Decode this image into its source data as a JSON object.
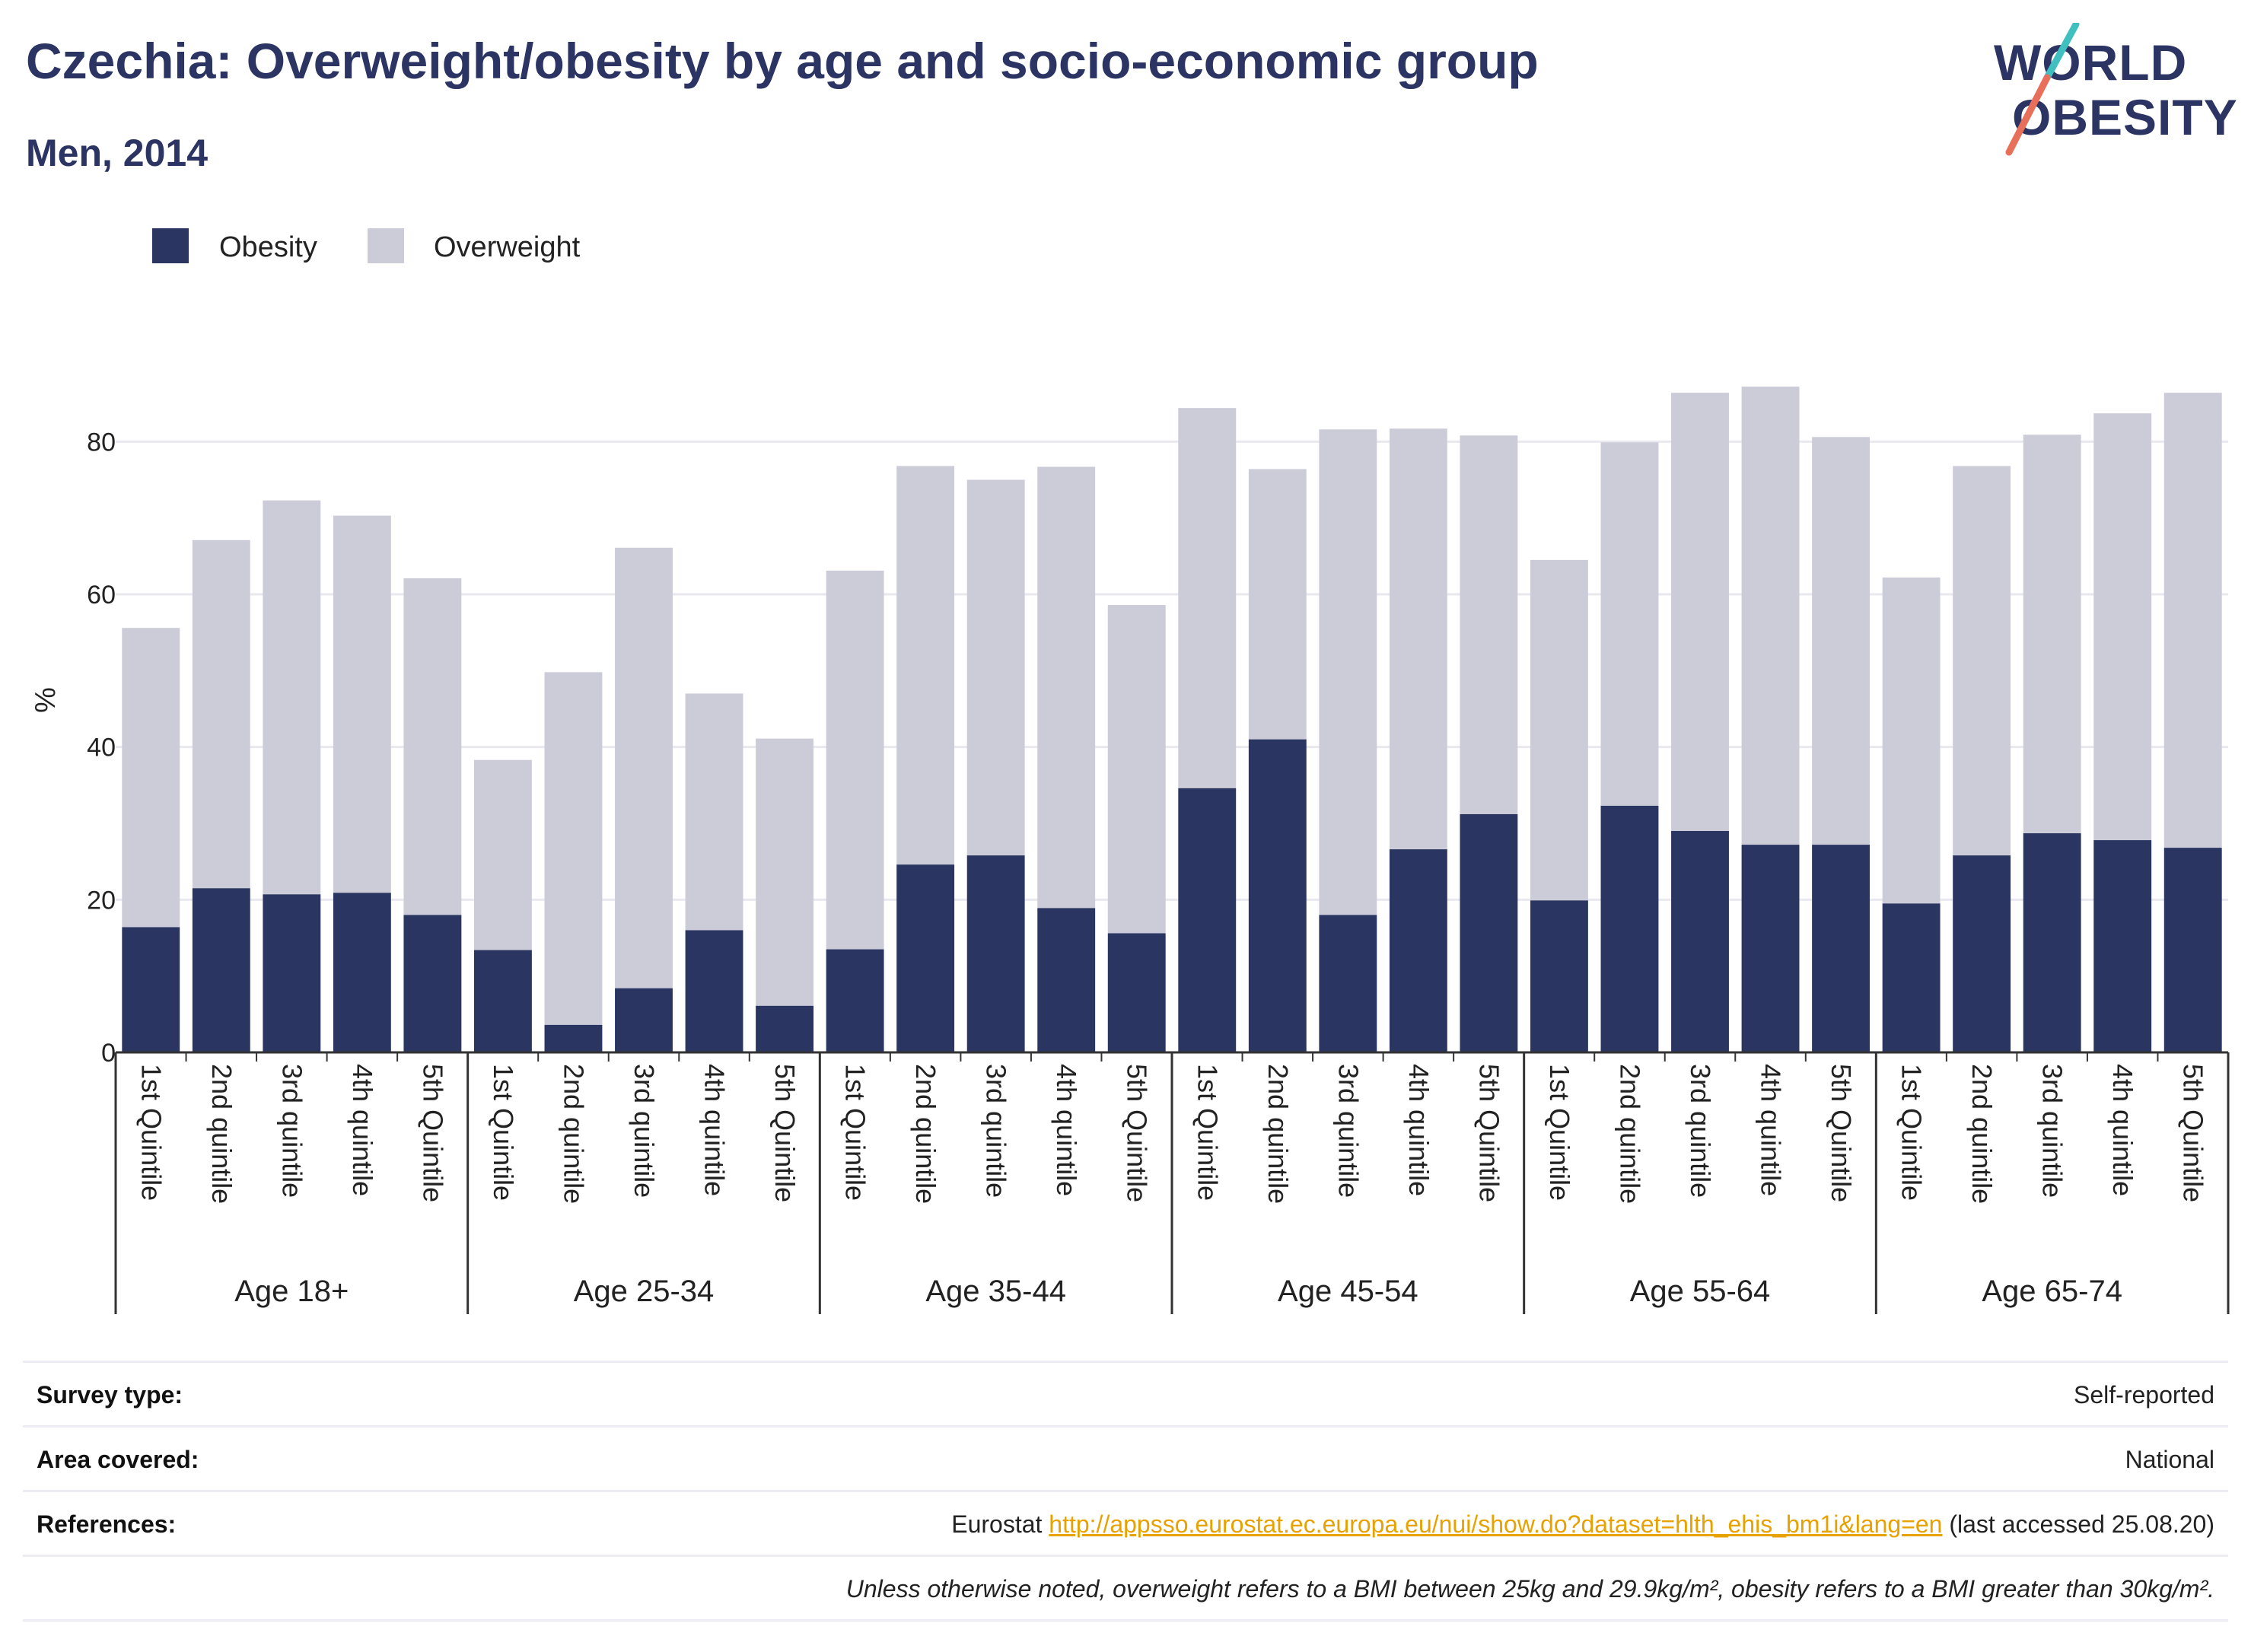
{
  "header": {
    "title": "Czechia: Overweight/obesity by age and socio-economic group",
    "subtitle": "Men, 2014"
  },
  "logo": {
    "line1": "WORLD",
    "line2": "OBESITY"
  },
  "colors": {
    "obesity": "#2b3562",
    "overweight": "#cbccd8",
    "grid": "#e8e8ee",
    "title": "#2b3462"
  },
  "chart_data": {
    "type": "bar",
    "stacked": true,
    "ylabel": "%",
    "ylim": [
      0,
      90
    ],
    "yticks": [
      0,
      20,
      40,
      60,
      80
    ],
    "grid": true,
    "legend_position": "top-left",
    "groups": [
      "Age 18+",
      "Age 25-34",
      "Age 35-44",
      "Age 45-54",
      "Age 55-64",
      "Age 65-74"
    ],
    "categories": [
      "1st Quintile",
      "2nd quintile",
      "3rd quintile",
      "4th quintile",
      "5th Quintile",
      "1st Quintile",
      "2nd quintile",
      "3rd quintile",
      "4th quintile",
      "5th Quintile",
      "1st Quintile",
      "2nd quintile",
      "3rd quintile",
      "4th quintile",
      "5th Quintile",
      "1st Quintile",
      "2nd quintile",
      "3rd quintile",
      "4th quintile",
      "5th Quintile",
      "1st Quintile",
      "2nd quintile",
      "3rd quintile",
      "4th quintile",
      "5th Quintile",
      "1st Quintile",
      "2nd quintile",
      "3rd quintile",
      "4th quintile",
      "5th Quintile"
    ],
    "series": [
      {
        "name": "Obesity",
        "values": [
          16.4,
          21.5,
          20.7,
          20.9,
          18.0,
          13.4,
          3.6,
          8.4,
          16.0,
          6.1,
          13.5,
          24.6,
          25.8,
          18.9,
          15.6,
          34.6,
          41.0,
          18.0,
          26.6,
          31.2,
          19.9,
          32.3,
          29.0,
          27.2,
          27.2,
          19.5,
          25.8,
          28.7,
          27.8,
          26.8
        ]
      },
      {
        "name": "Overweight",
        "values": [
          39.2,
          45.6,
          51.6,
          49.4,
          44.1,
          24.9,
          46.2,
          57.7,
          31.0,
          35.0,
          49.6,
          52.2,
          49.2,
          57.8,
          43.0,
          49.8,
          35.4,
          63.6,
          55.1,
          49.6,
          44.6,
          47.6,
          57.4,
          60.0,
          53.4,
          42.7,
          51.0,
          52.2,
          55.9,
          59.6
        ]
      }
    ]
  },
  "info": {
    "survey_label": "Survey type:",
    "survey_value": "Self-reported",
    "area_label": "Area covered:",
    "area_value": "National",
    "refs_label": "References:",
    "refs_prefix": "Eurostat ",
    "refs_link": "http://appsso.eurostat.ec.europa.eu/nui/show.do?dataset=hlth_ehis_bm1i&lang=en",
    "refs_suffix": " (last accessed 25.08.20)",
    "note": "Unless otherwise noted, overweight refers to a BMI between 25kg and 29.9kg/m², obesity refers to a BMI greater than 30kg/m²."
  }
}
